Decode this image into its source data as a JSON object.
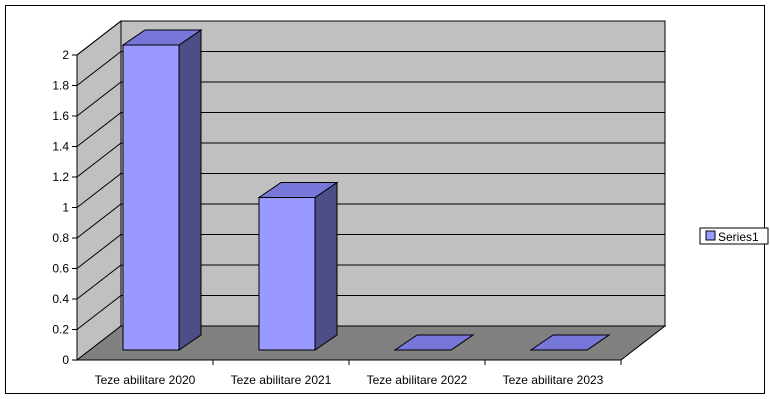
{
  "chart_data": {
    "type": "bar",
    "style": "3d-column",
    "categories": [
      "Teze abilitare 2020",
      "Teze abilitare 2021",
      "Teze abilitare 2022",
      "Teze abilitare 2023"
    ],
    "series": [
      {
        "name": "Series1",
        "values": [
          2,
          1,
          0,
          0
        ],
        "color": "#9999FF"
      }
    ],
    "y_ticks": [
      "0",
      "0.2",
      "0.4",
      "0.6",
      "0.8",
      "1",
      "1.2",
      "1.4",
      "1.6",
      "1.8",
      "2"
    ],
    "ylim": [
      0,
      2
    ],
    "grid": true,
    "legend_position": "right",
    "colors": {
      "wall": "#C0C0C0",
      "floor": "#808080",
      "bar_front": "#9999FF",
      "bar_side": "#4D4D88",
      "bar_top": "#7777D9"
    }
  }
}
